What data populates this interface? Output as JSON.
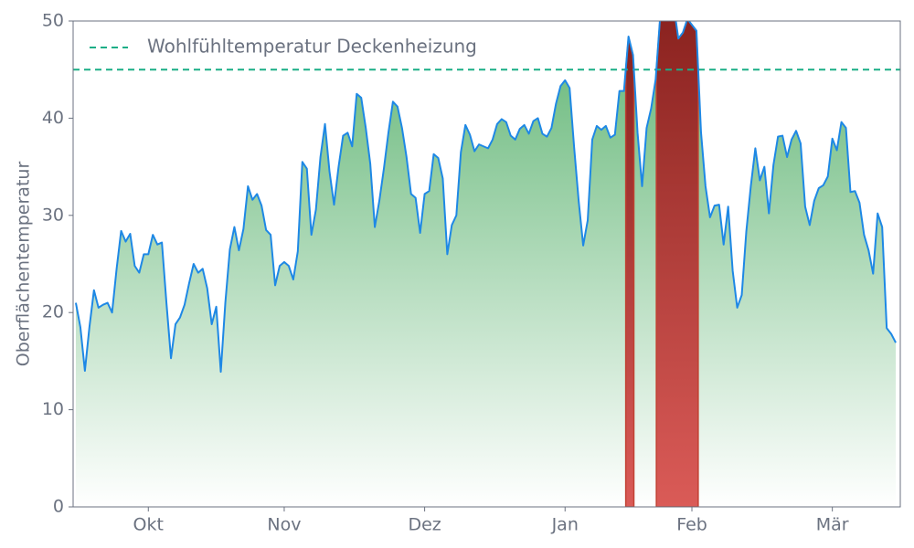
{
  "chart_data": {
    "type": "line",
    "ylabel": "Oberflächentemperatur",
    "values": [
      21,
      18.5,
      14,
      18.5,
      22.3,
      20.5,
      20.8,
      21,
      20,
      24.5,
      28.4,
      27.3,
      28.1,
      24.8,
      24.1,
      26,
      26,
      28,
      27,
      27.2,
      21,
      15.3,
      18.8,
      19.5,
      20.8,
      23,
      25,
      24.1,
      24.5,
      22.5,
      18.8,
      20.6,
      13.9,
      21,
      26.5,
      28.8,
      26.4,
      28.6,
      33,
      31.6,
      32.2,
      31,
      28.5,
      28,
      22.8,
      24.8,
      25.2,
      24.8,
      23.4,
      26.3,
      35.5,
      34.8,
      28,
      30.6,
      36,
      39.4,
      34.5,
      31.1,
      35,
      38.2,
      38.5,
      37.1,
      42.5,
      42.1,
      39,
      35.3,
      28.8,
      31.5,
      34.8,
      38.5,
      41.7,
      41.2,
      39,
      36,
      32.2,
      31.8,
      28.2,
      32.2,
      32.5,
      36.3,
      35.9,
      33.8,
      26,
      29,
      30,
      36.5,
      39.3,
      38.3,
      36.6,
      37.3,
      37.1,
      36.9,
      37.8,
      39.4,
      39.9,
      39.6,
      38.2,
      37.8,
      38.9,
      39.3,
      38.4,
      39.7,
      40,
      38.4,
      38.1,
      39,
      41.5,
      43.3,
      43.9,
      43.1,
      37,
      31.5,
      26.9,
      29.5,
      37.8,
      39.2,
      38.8,
      39.2,
      38,
      38.3,
      42.8,
      42.8,
      48.4,
      46.5,
      38.5,
      33,
      39,
      41,
      44,
      50.5,
      52,
      52,
      51.5,
      48.2,
      48.8,
      50.2,
      49.6,
      49,
      38.6,
      33,
      29.8,
      31,
      31.1,
      27,
      30.9,
      24.3,
      20.5,
      21.8,
      28.3,
      33,
      36.9,
      33.6,
      35,
      30.2,
      35.2,
      38.1,
      38.2,
      36,
      37.8,
      38.7,
      37.4,
      30.9,
      29,
      31.5,
      32.8,
      33.1,
      34,
      37.9,
      36.7,
      39.6,
      39,
      32.4,
      32.5,
      31.3,
      28,
      26.4,
      24,
      30.2,
      28.8,
      18.4,
      17.8,
      16.9
    ],
    "color": "#1e88e5",
    "fill_color": "#5cb370",
    "over_color": "#8b1a1a",
    "threshold": {
      "value": 45,
      "label": "Wohlfühltemperatur Deckenheizung",
      "color": "#1aae86"
    },
    "xlim": [
      -0.6,
      182
    ],
    "xticks": [
      {
        "value": 16,
        "label": "Okt"
      },
      {
        "value": 46,
        "label": "Nov"
      },
      {
        "value": 77,
        "label": "Dez"
      },
      {
        "value": 108,
        "label": "Jan"
      },
      {
        "value": 136,
        "label": "Feb"
      },
      {
        "value": 167,
        "label": "Mär"
      }
    ],
    "ylim": [
      0,
      50
    ],
    "yticks": [
      0,
      10,
      20,
      30,
      40,
      50
    ],
    "legend": "upper left"
  }
}
